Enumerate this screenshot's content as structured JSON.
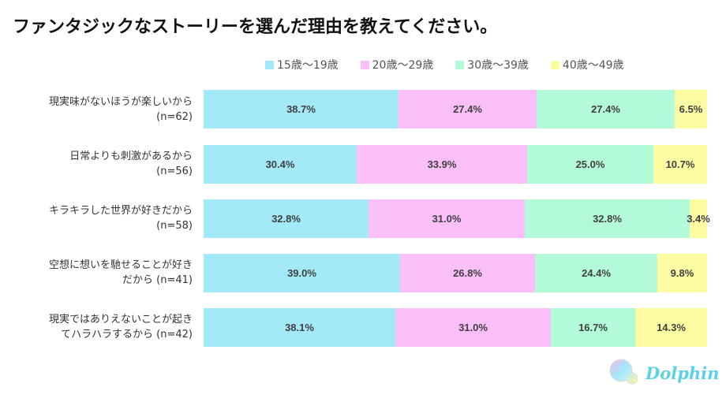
{
  "chart_data": {
    "type": "bar",
    "orientation": "horizontal",
    "stacked": true,
    "title": "ファンタジックなストーリーを選んだ理由を教えてください。",
    "xlabel": "",
    "ylabel": "",
    "xlim": [
      0,
      100
    ],
    "legend_position": "top",
    "categories": [
      [
        "現実味がないほうが楽しいから",
        "(n=62)"
      ],
      [
        "日常よりも刺激があるから",
        "(n=56)"
      ],
      [
        "キラキラした世界が好きだから",
        "(n=58)"
      ],
      [
        "空想に想いを馳せることが好き",
        "だから (n=41)"
      ],
      [
        "現実ではありえないことが起き",
        "てハラハラするから (n=42)"
      ]
    ],
    "series": [
      {
        "name": "15歳～19歳",
        "color": "#a3e9f7",
        "values": [
          38.7,
          30.4,
          32.8,
          39.0,
          38.1
        ],
        "labels": [
          "38.7%",
          "30.4%",
          "32.8%",
          "39.0%",
          "38.1%"
        ]
      },
      {
        "name": "20歳～29歳",
        "color": "#fabff9",
        "values": [
          27.4,
          33.9,
          31.0,
          26.8,
          31.0
        ],
        "labels": [
          "27.4%",
          "33.9%",
          "31.0%",
          "26.8%",
          "31.0%"
        ]
      },
      {
        "name": "30歳～39歳",
        "color": "#b3fad8",
        "values": [
          27.4,
          25.0,
          32.8,
          24.4,
          16.7
        ],
        "labels": [
          "27.4%",
          "25.0%",
          "32.8%",
          "24.4%",
          "16.7%"
        ]
      },
      {
        "name": "40歳～49歳",
        "color": "#fdfca2",
        "values": [
          6.5,
          10.7,
          3.4,
          9.8,
          14.3
        ],
        "labels": [
          "6.5%",
          "10.7%",
          "3.4%",
          "9.8%",
          "14.3%"
        ]
      }
    ]
  },
  "logo": {
    "text": "Dolphin",
    "icon": "dolphin-bubble-logo"
  }
}
